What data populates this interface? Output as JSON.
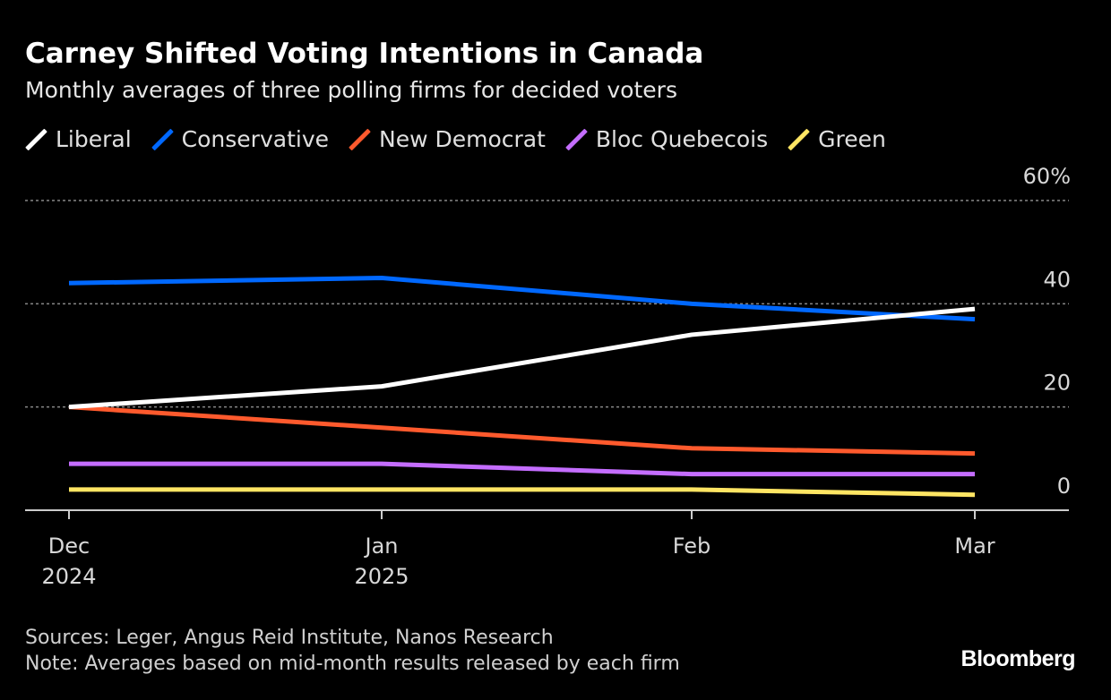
{
  "chart_data": {
    "type": "line",
    "title": "Carney Shifted Voting Intentions in Canada",
    "subtitle": "Monthly averages of three polling firms for decided voters",
    "categories": [
      "Dec 2024",
      "Jan 2025",
      "Feb",
      "Mar"
    ],
    "category_labels": [
      [
        "Dec",
        "2024"
      ],
      [
        "Jan",
        "2025"
      ],
      [
        "Feb",
        ""
      ],
      [
        "Mar",
        ""
      ]
    ],
    "ylim": [
      0,
      60
    ],
    "yticks": [
      0,
      20,
      40,
      60
    ],
    "ytick_labels": [
      "0",
      "20",
      "40",
      "60%"
    ],
    "grid": true,
    "legend_position": "top-left",
    "series": [
      {
        "name": "Liberal",
        "color": "#ffffff",
        "values": [
          20,
          24,
          34,
          39
        ]
      },
      {
        "name": "Conservative",
        "color": "#0068ff",
        "values": [
          44,
          45,
          40,
          37
        ]
      },
      {
        "name": "New Democrat",
        "color": "#ff5a2d",
        "values": [
          20,
          16,
          12,
          11
        ]
      },
      {
        "name": "Bloc Quebecois",
        "color": "#c46dff",
        "values": [
          9,
          9,
          7,
          7
        ]
      },
      {
        "name": "Green",
        "color": "#ffe563",
        "values": [
          4,
          4,
          4,
          3
        ]
      }
    ]
  },
  "footer": {
    "sources": "Sources: Leger, Angus Reid Institute, Nanos Research",
    "note": "Note: Averages based on mid-month results released by each firm",
    "logo": "Bloomberg"
  }
}
